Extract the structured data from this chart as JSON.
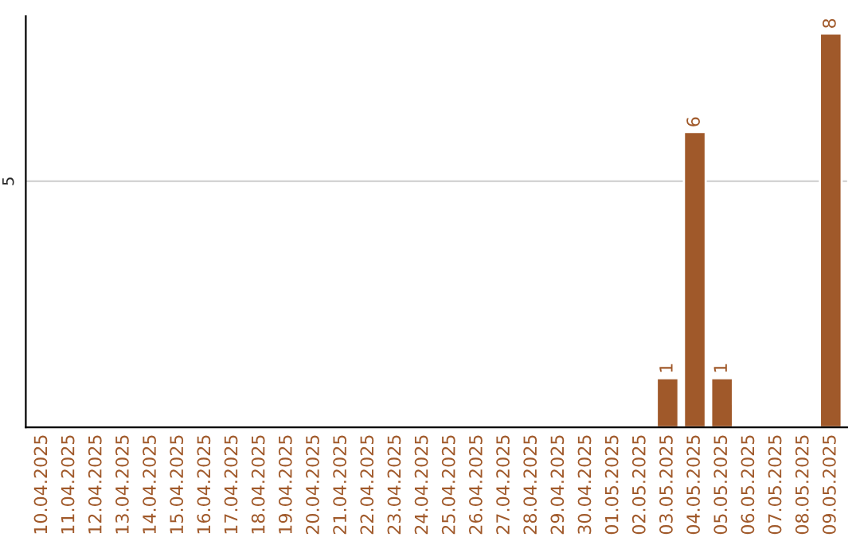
{
  "chart_data": {
    "type": "bar",
    "ylim": [
      0,
      8.35
    ],
    "categories": [
      "10.04.2025",
      "11.04.2025",
      "12.04.2025",
      "13.04.2025",
      "14.04.2025",
      "15.04.2025",
      "16.04.2025",
      "17.04.2025",
      "18.04.2025",
      "19.04.2025",
      "20.04.2025",
      "21.04.2025",
      "22.04.2025",
      "23.04.2025",
      "24.04.2025",
      "25.04.2025",
      "26.04.2025",
      "27.04.2025",
      "28.04.2025",
      "29.04.2025",
      "30.04.2025",
      "01.05.2025",
      "02.05.2025",
      "03.05.2025",
      "04.05.2025",
      "05.05.2025",
      "06.05.2025",
      "07.05.2025",
      "08.05.2025",
      "09.05.2025"
    ],
    "values": [
      null,
      null,
      null,
      null,
      null,
      null,
      null,
      null,
      null,
      null,
      null,
      null,
      null,
      null,
      null,
      null,
      null,
      null,
      null,
      null,
      null,
      null,
      null,
      1,
      6,
      1,
      null,
      null,
      null,
      8
    ],
    "data_labels": true,
    "color": "#a0592a",
    "ref_lines": [
      {
        "axis": "y",
        "value": 5,
        "label": "5",
        "color": "#cccccc"
      }
    ]
  }
}
